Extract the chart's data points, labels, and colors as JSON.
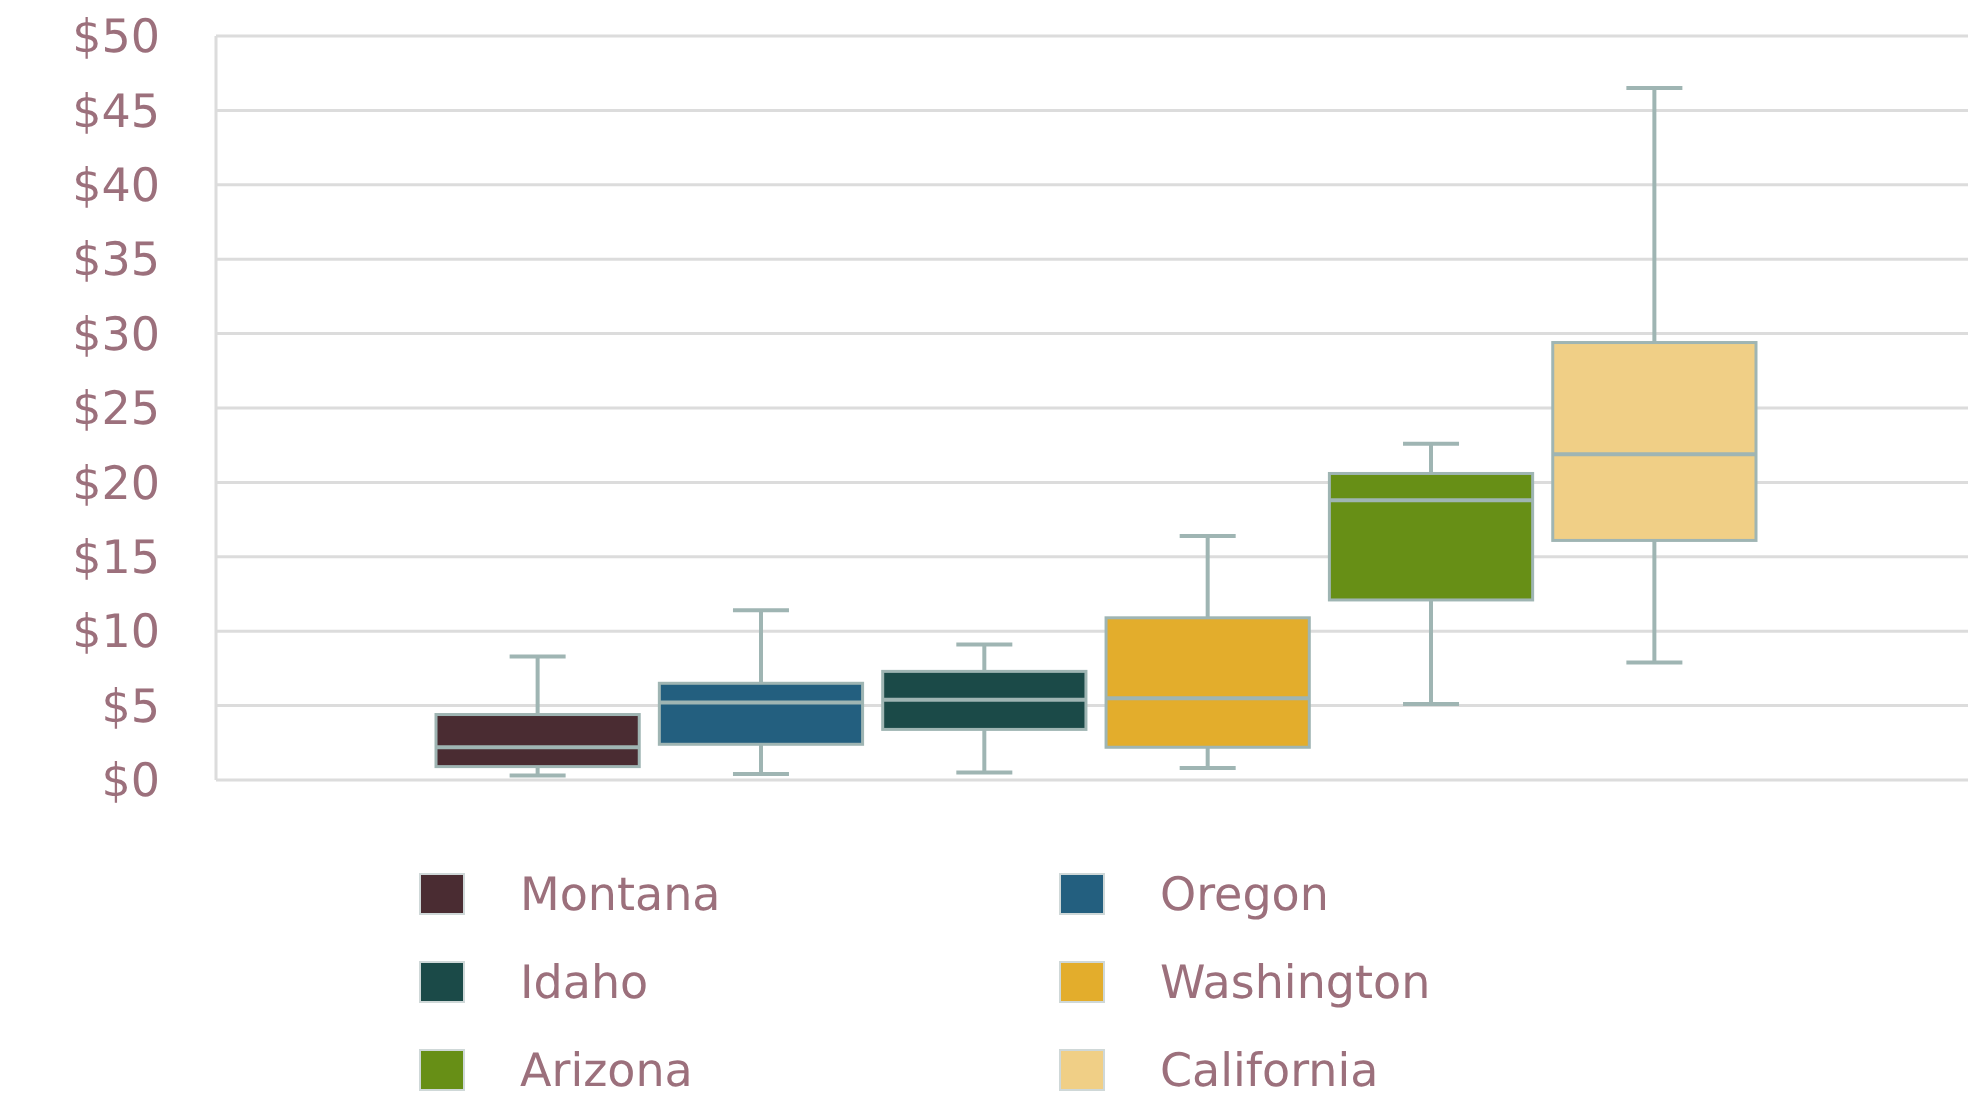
{
  "chart_data": {
    "type": "box",
    "categories": [
      null
    ],
    "ylim": [
      0,
      50
    ],
    "yticks": [
      {
        "value": 0,
        "label": "$0"
      },
      {
        "value": 5,
        "label": "$5"
      },
      {
        "value": 10,
        "label": "$10"
      },
      {
        "value": 15,
        "label": "$15"
      },
      {
        "value": 20,
        "label": "$20"
      },
      {
        "value": 25,
        "label": "$25"
      },
      {
        "value": 30,
        "label": "$30"
      },
      {
        "value": 35,
        "label": "$35"
      },
      {
        "value": 40,
        "label": "$40"
      },
      {
        "value": 45,
        "label": "$45"
      },
      {
        "value": 50,
        "label": "$50"
      }
    ],
    "grid": "y",
    "legend": "bottom",
    "series": [
      {
        "name": "Montana",
        "color": "#4a2c32",
        "boxes": [
          {
            "low": 0.3,
            "q1": 0.9,
            "median": 2.2,
            "q3": 4.4,
            "high": 8.3
          }
        ]
      },
      {
        "name": "Oregon",
        "color": "#235f7f",
        "boxes": [
          {
            "low": 0.4,
            "q1": 2.4,
            "median": 5.2,
            "q3": 6.5,
            "high": 11.4
          }
        ]
      },
      {
        "name": "Idaho",
        "color": "#1b4a48",
        "boxes": [
          {
            "low": 0.5,
            "q1": 3.4,
            "median": 5.4,
            "q3": 7.3,
            "high": 9.1
          }
        ]
      },
      {
        "name": "Washington",
        "color": "#e3ad2c",
        "boxes": [
          {
            "low": 0.8,
            "q1": 2.2,
            "median": 5.5,
            "q3": 10.9,
            "high": 16.4
          }
        ]
      },
      {
        "name": "Arizona",
        "color": "#678f16",
        "boxes": [
          {
            "low": 5.1,
            "q1": 12.1,
            "median": 18.8,
            "q3": 20.6,
            "high": 22.6
          }
        ]
      },
      {
        "name": "California",
        "color": "#f0cf86",
        "boxes": [
          {
            "low": 7.9,
            "q1": 16.1,
            "median": 21.9,
            "q3": 29.4,
            "high": 46.5
          }
        ]
      }
    ]
  }
}
